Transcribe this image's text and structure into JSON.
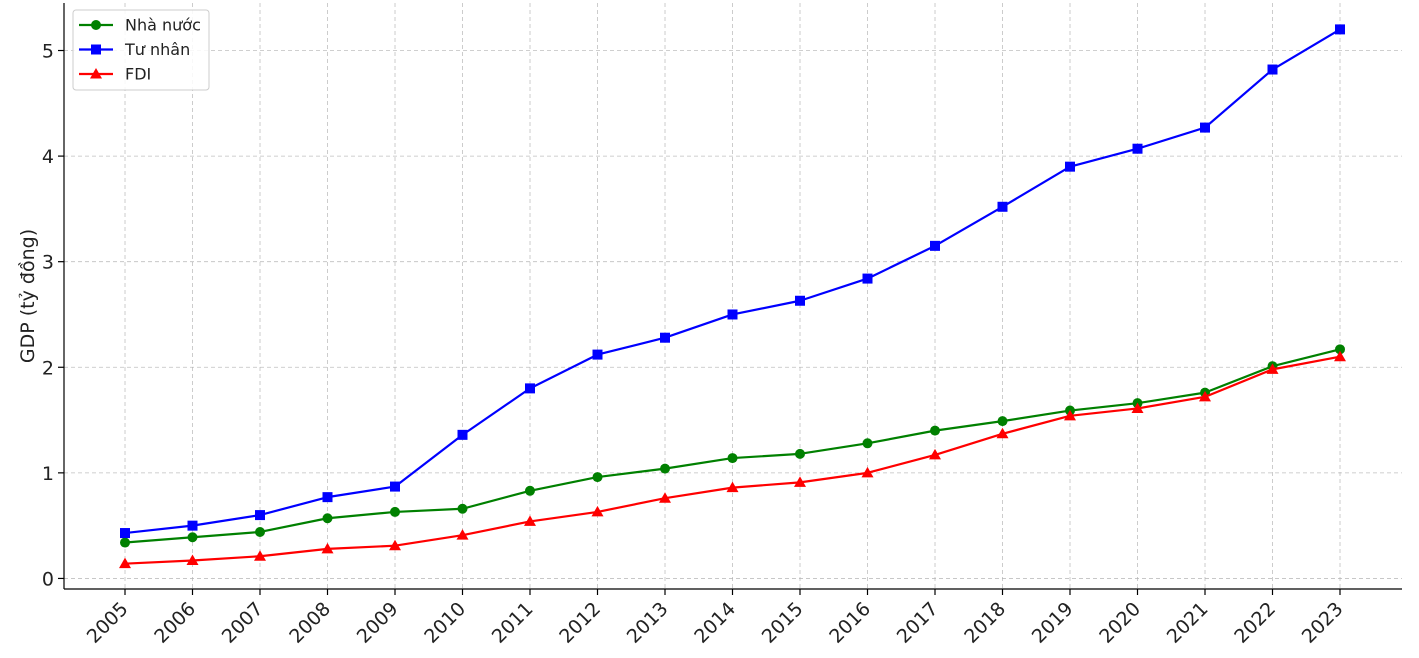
{
  "chart_data": {
    "type": "line",
    "title": "",
    "xlabel": "",
    "ylabel": "GDP (tỷ đồng)",
    "x": [
      "2005",
      "2006",
      "2007",
      "2008",
      "2009",
      "2010",
      "2011",
      "2012",
      "2013",
      "2014",
      "2015",
      "2016",
      "2017",
      "2018",
      "2019",
      "2020",
      "2021",
      "2022",
      "2023"
    ],
    "yticks": [
      "0",
      "1",
      "2",
      "3",
      "4",
      "5"
    ],
    "ylim": [
      -0.1,
      5.45
    ],
    "grid": true,
    "legend_position": "top-left",
    "series": [
      {
        "name": "Nhà nước",
        "color": "#008000",
        "marker": "circle",
        "values": [
          0.34,
          0.39,
          0.44,
          0.57,
          0.63,
          0.66,
          0.83,
          0.96,
          1.04,
          1.14,
          1.18,
          1.28,
          1.4,
          1.49,
          1.59,
          1.66,
          1.76,
          2.01,
          2.17
        ]
      },
      {
        "name": "Tư nhân",
        "color": "#0000ff",
        "marker": "square",
        "values": [
          0.43,
          0.5,
          0.6,
          0.77,
          0.87,
          1.36,
          1.8,
          2.12,
          2.28,
          2.5,
          2.63,
          2.84,
          3.15,
          3.52,
          3.9,
          4.07,
          4.27,
          4.82,
          5.2
        ]
      },
      {
        "name": "FDI",
        "color": "#ff0000",
        "marker": "triangle",
        "values": [
          0.14,
          0.17,
          0.21,
          0.28,
          0.31,
          0.41,
          0.54,
          0.63,
          0.76,
          0.86,
          0.91,
          1.0,
          1.17,
          1.37,
          1.54,
          1.61,
          1.72,
          1.98,
          2.1
        ]
      }
    ]
  }
}
